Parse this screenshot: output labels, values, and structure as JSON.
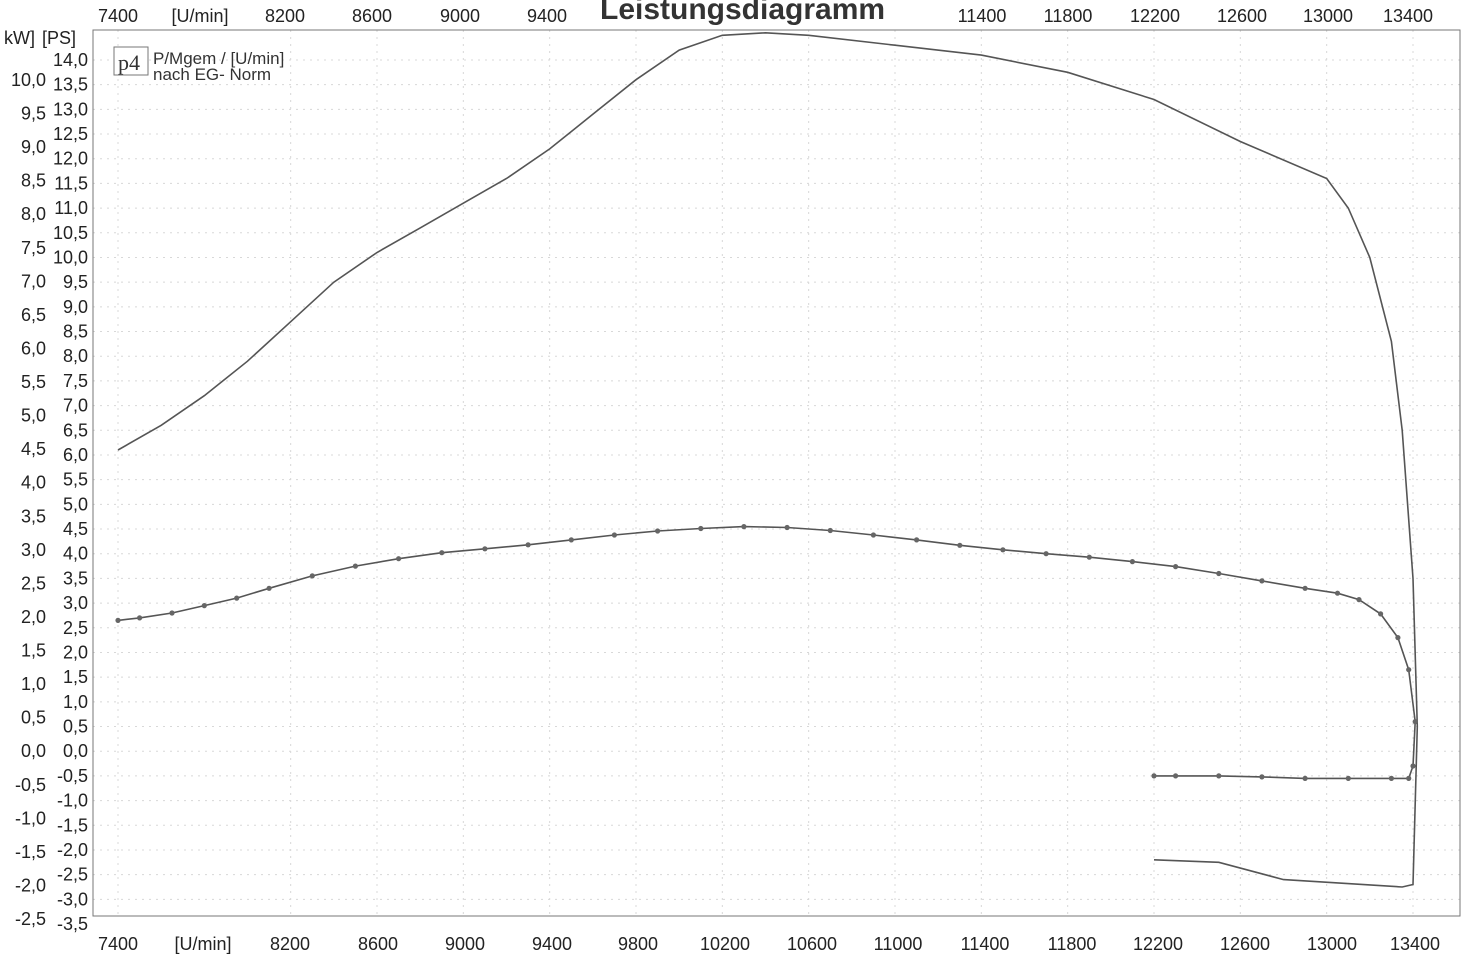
{
  "chart_data": {
    "type": "line",
    "title": "Leistungsdiagramm",
    "legend": {
      "badge": "p4",
      "line1": "P/Mgem / [U/min]",
      "line2": "nach EG- Norm"
    },
    "x_unit": "[U/min]",
    "x_ticks": [
      7400,
      8200,
      8600,
      9000,
      9400,
      9800,
      10200,
      10600,
      11000,
      11400,
      11800,
      12200,
      12600,
      13000,
      13400
    ],
    "x_top_labels": [
      "7400",
      "[U/min]",
      "8200",
      "8600",
      "9000",
      "9400",
      "11400",
      "11800",
      "12200",
      "12600",
      "13000",
      "13400"
    ],
    "x_bottom_labels": [
      "7400",
      "[U/min]",
      "8200",
      "8600",
      "9000",
      "9400",
      "9800",
      "10200",
      "10600",
      "11000",
      "11400",
      "11800",
      "12200",
      "12600",
      "13000",
      "13400"
    ],
    "y_left_unit": "kW]",
    "y_right_unit": "[PS]",
    "y_left_ticks": [
      "10,0",
      "9,5",
      "9,0",
      "8,5",
      "8,0",
      "7,5",
      "7,0",
      "6,5",
      "6,0",
      "5,5",
      "5,0",
      "4,5",
      "4,0",
      "3,5",
      "3,0",
      "2,5",
      "2,0",
      "1,5",
      "1,0",
      "0,5",
      "0,0",
      "-0,5",
      "-1,0",
      "-1,5",
      "-2,0",
      "-2,5"
    ],
    "y_right_ticks": [
      "14,0",
      "13,5",
      "13,0",
      "12,5",
      "12,0",
      "11,5",
      "11,0",
      "10,5",
      "10,0",
      "9,5",
      "9,0",
      "8,5",
      "8,0",
      "7,5",
      "7,0",
      "6,5",
      "6,0",
      "5,5",
      "5,0",
      "4,5",
      "4,0",
      "3,5",
      "3,0",
      "2,5",
      "2,0",
      "1,5",
      "1,0",
      "0,5",
      "0,0",
      "-0,5",
      "-1,0",
      "-1,5",
      "-2,0",
      "-2,5",
      "-3,0",
      "-3,5"
    ],
    "ylim_ps": [
      -3.5,
      14.5
    ],
    "xlim": [
      7400,
      13400
    ],
    "grid": true,
    "series": [
      {
        "name": "",
        "color": "#555555",
        "markers": false,
        "points": [
          [
            7400,
            6.1
          ],
          [
            7600,
            6.6
          ],
          [
            7800,
            7.2
          ],
          [
            8000,
            7.9
          ],
          [
            8200,
            8.7
          ],
          [
            8400,
            9.5
          ],
          [
            8600,
            10.1
          ],
          [
            8800,
            10.6
          ],
          [
            9000,
            11.1
          ],
          [
            9200,
            11.6
          ],
          [
            9400,
            12.2
          ],
          [
            9600,
            12.9
          ],
          [
            9800,
            13.6
          ],
          [
            10000,
            14.2
          ],
          [
            10200,
            14.5
          ],
          [
            10400,
            14.55
          ],
          [
            10600,
            14.5
          ],
          [
            11000,
            14.3
          ],
          [
            11400,
            14.1
          ],
          [
            11800,
            13.75
          ],
          [
            12200,
            13.2
          ],
          [
            12600,
            12.35
          ],
          [
            13000,
            11.6
          ],
          [
            13100,
            11.0
          ],
          [
            13200,
            10.0
          ],
          [
            13300,
            8.3
          ],
          [
            13350,
            6.5
          ],
          [
            13400,
            3.5
          ],
          [
            13420,
            0.5
          ],
          [
            13400,
            -2.7
          ],
          [
            13350,
            -2.75
          ],
          [
            12800,
            -2.6
          ],
          [
            12500,
            -2.25
          ],
          [
            12200,
            -2.2
          ]
        ]
      },
      {
        "name": "",
        "color": "#555555",
        "markers": true,
        "points": [
          [
            7400,
            2.65
          ],
          [
            7500,
            2.7
          ],
          [
            7650,
            2.8
          ],
          [
            7800,
            2.95
          ],
          [
            7950,
            3.1
          ],
          [
            8100,
            3.3
          ],
          [
            8300,
            3.55
          ],
          [
            8500,
            3.75
          ],
          [
            8700,
            3.9
          ],
          [
            8900,
            4.02
          ],
          [
            9100,
            4.1
          ],
          [
            9300,
            4.18
          ],
          [
            9500,
            4.28
          ],
          [
            9700,
            4.38
          ],
          [
            9900,
            4.46
          ],
          [
            10100,
            4.51
          ],
          [
            10300,
            4.55
          ],
          [
            10500,
            4.53
          ],
          [
            10700,
            4.47
          ],
          [
            10900,
            4.38
          ],
          [
            11100,
            4.28
          ],
          [
            11300,
            4.17
          ],
          [
            11500,
            4.08
          ],
          [
            11700,
            4.0
          ],
          [
            11900,
            3.93
          ],
          [
            12100,
            3.84
          ],
          [
            12300,
            3.74
          ],
          [
            12500,
            3.6
          ],
          [
            12700,
            3.45
          ],
          [
            12900,
            3.3
          ],
          [
            13050,
            3.2
          ],
          [
            13150,
            3.07
          ],
          [
            13250,
            2.78
          ],
          [
            13330,
            2.3
          ],
          [
            13380,
            1.65
          ],
          [
            13410,
            0.6
          ],
          [
            13400,
            -0.3
          ],
          [
            13380,
            -0.55
          ],
          [
            13300,
            -0.55
          ],
          [
            13100,
            -0.55
          ],
          [
            12900,
            -0.55
          ],
          [
            12700,
            -0.52
          ],
          [
            12500,
            -0.5
          ],
          [
            12300,
            -0.5
          ],
          [
            12200,
            -0.5
          ]
        ]
      }
    ]
  }
}
